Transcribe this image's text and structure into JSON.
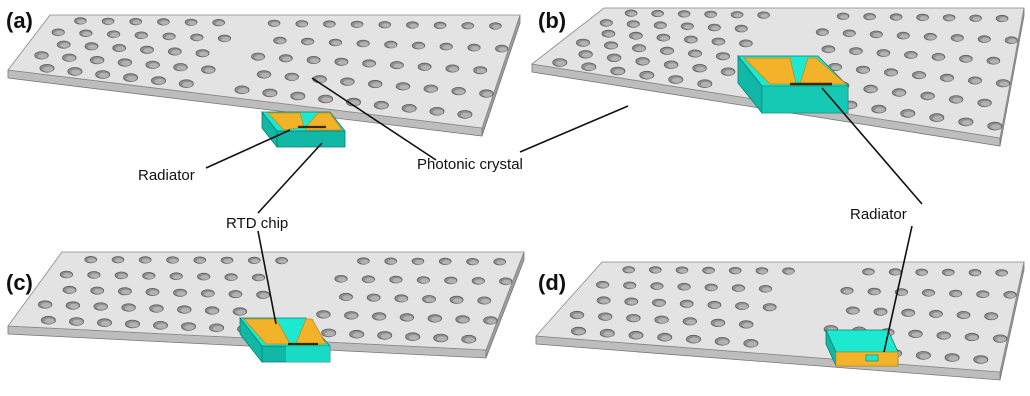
{
  "panels": [
    {
      "label": "(a)"
    },
    {
      "label": "(b)"
    },
    {
      "label": "(c)"
    },
    {
      "label": "(d)"
    }
  ],
  "callouts": {
    "radiator_a": "Radiator",
    "photonic_crystal": "Photonic crystal",
    "rtd_chip": "RTD chip",
    "radiator_d": "Radiator"
  },
  "colors": {
    "slab_top": "#e3e3e3",
    "slab_front": "#bdbdbd",
    "slab_side": "#9e9e9e",
    "hole": "#8f8f8f",
    "hole_shadow": "#5f5f5f",
    "chip": "#1de9d0",
    "chip_dark": "#12b8a6",
    "metal": "#f2b32a",
    "metal_dark": "#c98b10",
    "line": "#111111"
  }
}
